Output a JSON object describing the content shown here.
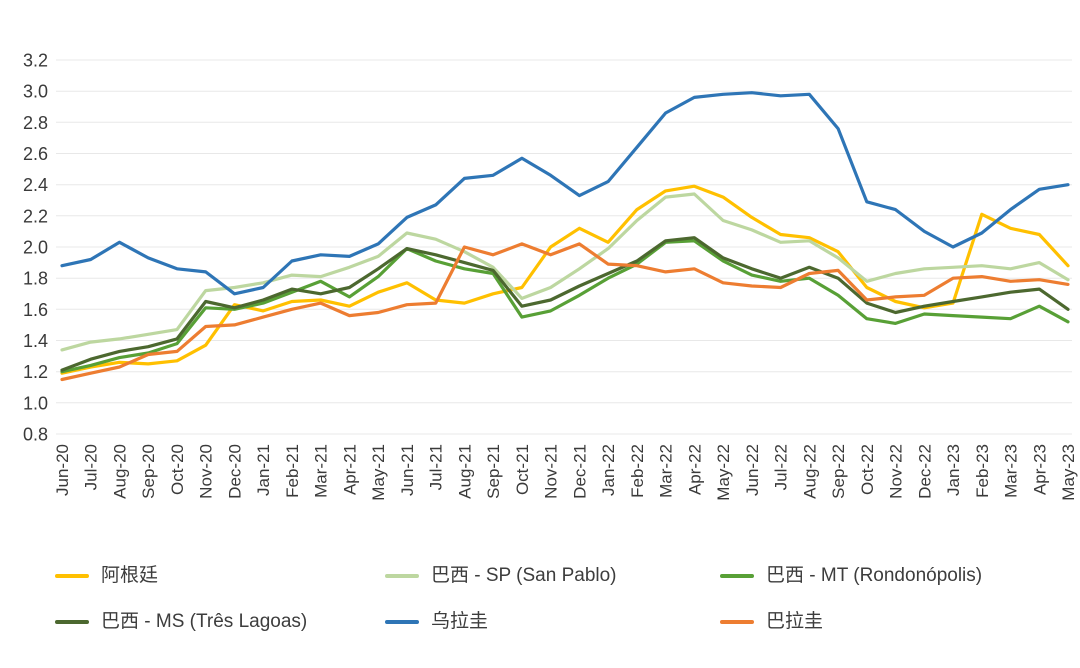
{
  "chart_data": {
    "type": "line",
    "title": "",
    "xlabel": "",
    "ylabel": "",
    "ylim": [
      0.8,
      3.2
    ],
    "ytick_step": 0.2,
    "ytick_labels": [
      "3.2",
      "3.0",
      "2.8",
      "2.6",
      "2.4",
      "2.2",
      "2.0",
      "1.8",
      "1.6",
      "1.4",
      "1.2",
      "1.0",
      "0.8"
    ],
    "grid": "horizontal",
    "grid_color": "#E8E8E8",
    "legend_position": "bottom",
    "x_categories": [
      "Jun-20",
      "Jul-20",
      "Aug-20",
      "Sep-20",
      "Oct-20",
      "Nov-20",
      "Dec-20",
      "Jan-21",
      "Feb-21",
      "Mar-21",
      "Apr-21",
      "May-21",
      "Jun-21",
      "Jul-21",
      "Aug-21",
      "Sep-21",
      "Oct-21",
      "Nov-21",
      "Dec-21",
      "Jan-22",
      "Feb-22",
      "Mar-22",
      "Apr-22",
      "May-22",
      "Jun-22",
      "Jul-22",
      "Aug-22",
      "Sep-22",
      "Oct-22",
      "Nov-22",
      "Dec-22",
      "Jan-23",
      "Feb-23",
      "Mar-23",
      "Apr-23",
      "May-23"
    ],
    "series": [
      {
        "name": "阿根廷",
        "color": "#FFC000",
        "values": [
          1.19,
          1.23,
          1.26,
          1.25,
          1.27,
          1.37,
          1.63,
          1.59,
          1.65,
          1.66,
          1.62,
          1.71,
          1.77,
          1.66,
          1.64,
          1.7,
          1.74,
          2.0,
          2.12,
          2.03,
          2.24,
          2.36,
          2.39,
          2.32,
          2.19,
          2.08,
          2.06,
          1.97,
          1.74,
          1.65,
          1.61,
          1.64,
          2.21,
          2.12,
          2.08,
          1.88
        ]
      },
      {
        "name": "巴西 - SP (San Pablo)",
        "color": "#BDD7A0",
        "values": [
          1.34,
          1.39,
          1.41,
          1.44,
          1.47,
          1.72,
          1.74,
          1.77,
          1.82,
          1.81,
          1.87,
          1.94,
          2.09,
          2.05,
          1.97,
          1.87,
          1.67,
          1.74,
          1.86,
          1.99,
          2.17,
          2.32,
          2.34,
          2.17,
          2.11,
          2.03,
          2.04,
          1.93,
          1.78,
          1.83,
          1.86,
          1.87,
          1.88,
          1.86,
          1.9,
          1.79
        ]
      },
      {
        "name": "巴西 - MT (Rondonópolis)",
        "color": "#58A036",
        "values": [
          1.2,
          1.24,
          1.29,
          1.32,
          1.38,
          1.61,
          1.6,
          1.64,
          1.71,
          1.78,
          1.68,
          1.81,
          1.99,
          1.91,
          1.86,
          1.83,
          1.55,
          1.59,
          1.69,
          1.8,
          1.89,
          2.03,
          2.04,
          1.91,
          1.82,
          1.78,
          1.8,
          1.69,
          1.54,
          1.51,
          1.57,
          1.56,
          1.55,
          1.54,
          1.62,
          1.52
        ]
      },
      {
        "name": "巴西 - MS (Três Lagoas)",
        "color": "#4C682F",
        "values": [
          1.21,
          1.28,
          1.33,
          1.36,
          1.41,
          1.65,
          1.61,
          1.66,
          1.73,
          1.7,
          1.74,
          1.86,
          1.99,
          1.95,
          1.9,
          1.85,
          1.62,
          1.66,
          1.75,
          1.83,
          1.91,
          2.04,
          2.06,
          1.93,
          1.86,
          1.8,
          1.87,
          1.8,
          1.64,
          1.58,
          1.62,
          1.65,
          1.68,
          1.71,
          1.73,
          1.6
        ]
      },
      {
        "name": "乌拉圭",
        "color": "#2E75B6",
        "values": [
          1.88,
          1.92,
          2.03,
          1.93,
          1.86,
          1.84,
          1.7,
          1.74,
          1.91,
          1.95,
          1.94,
          2.02,
          2.19,
          2.27,
          2.44,
          2.46,
          2.57,
          2.46,
          2.33,
          2.42,
          2.64,
          2.86,
          2.96,
          2.98,
          2.99,
          2.97,
          2.98,
          2.76,
          2.29,
          2.24,
          2.1,
          2.0,
          2.09,
          2.24,
          2.37,
          2.4
        ]
      },
      {
        "name": "巴拉圭",
        "color": "#ED7D31",
        "values": [
          1.15,
          1.19,
          1.23,
          1.31,
          1.33,
          1.49,
          1.5,
          1.55,
          1.6,
          1.64,
          1.56,
          1.58,
          1.63,
          1.64,
          2.0,
          1.95,
          2.02,
          1.95,
          2.02,
          1.89,
          1.88,
          1.84,
          1.86,
          1.77,
          1.75,
          1.74,
          1.83,
          1.85,
          1.66,
          1.68,
          1.69,
          1.8,
          1.81,
          1.78,
          1.79,
          1.76
        ]
      }
    ]
  }
}
